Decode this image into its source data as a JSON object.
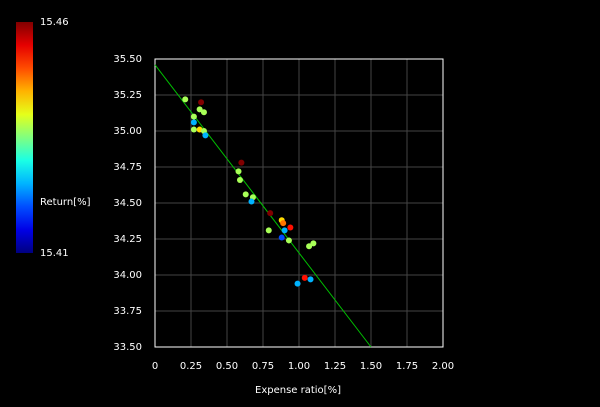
{
  "chart_data": {
    "type": "scatter",
    "x_label": "Expense ratio[%]",
    "color_label": "Return[%]",
    "colorbar_ticks": [
      {
        "value": 15.46,
        "label": "15.46"
      },
      {
        "value": 15.41,
        "label": "15.41"
      }
    ],
    "clim": [
      15.41,
      15.46
    ],
    "colormap": "jet",
    "x": [
      0.21,
      0.32,
      0.31,
      0.34,
      0.27,
      0.27,
      0.27,
      0.31,
      0.34,
      0.35,
      0.6,
      0.58,
      0.59,
      0.63,
      0.68,
      0.67,
      0.8,
      0.79,
      0.88,
      0.89,
      0.94,
      0.9,
      0.88,
      0.93,
      1.07,
      1.1,
      1.04,
      1.08,
      0.99
    ],
    "values": [
      35.22,
      35.2,
      35.15,
      35.13,
      35.1,
      35.06,
      35.01,
      35.01,
      35.0,
      34.97,
      34.78,
      34.72,
      34.66,
      34.56,
      34.54,
      34.51,
      34.43,
      34.31,
      34.38,
      34.36,
      34.33,
      34.31,
      34.26,
      34.24,
      34.2,
      34.22,
      33.98,
      33.97,
      33.94
    ],
    "c": [
      15.437,
      15.46,
      15.437,
      15.437,
      15.437,
      15.425,
      15.437,
      15.443,
      15.437,
      15.425,
      15.46,
      15.437,
      15.437,
      15.437,
      15.437,
      15.425,
      15.46,
      15.437,
      15.443,
      15.448,
      15.453,
      15.425,
      15.42,
      15.437,
      15.437,
      15.437,
      15.453,
      15.425,
      15.425
    ],
    "trend_line": {
      "x": [
        0,
        1.5
      ],
      "y": [
        35.46,
        33.5
      ],
      "color": "#00c000"
    },
    "xlim": [
      0,
      2
    ],
    "ylim": [
      33.5,
      35.5
    ],
    "xticks": [
      0,
      {
        "value": 0.25,
        "label": "0.25"
      },
      {
        "value": 0.5,
        "label": "0.50"
      },
      {
        "value": 0.75,
        "label": "0.75"
      },
      {
        "value": 1,
        "label": "1.00"
      },
      {
        "value": 1.25,
        "label": "1.25"
      },
      {
        "value": 1.5,
        "label": "1.50"
      },
      {
        "value": 1.75,
        "label": "1.75"
      },
      {
        "value": 2,
        "label": "2.00"
      }
    ],
    "yticks": [
      {
        "value": 33.5,
        "label": "33.50"
      },
      33.75,
      {
        "value": 34,
        "label": "34.00"
      },
      34.25,
      {
        "value": 34.5,
        "label": "34.50"
      },
      34.75,
      {
        "value": 35,
        "label": "35.00"
      },
      35.25,
      {
        "value": 35.5,
        "label": "35.50"
      }
    ],
    "grid": true
  }
}
